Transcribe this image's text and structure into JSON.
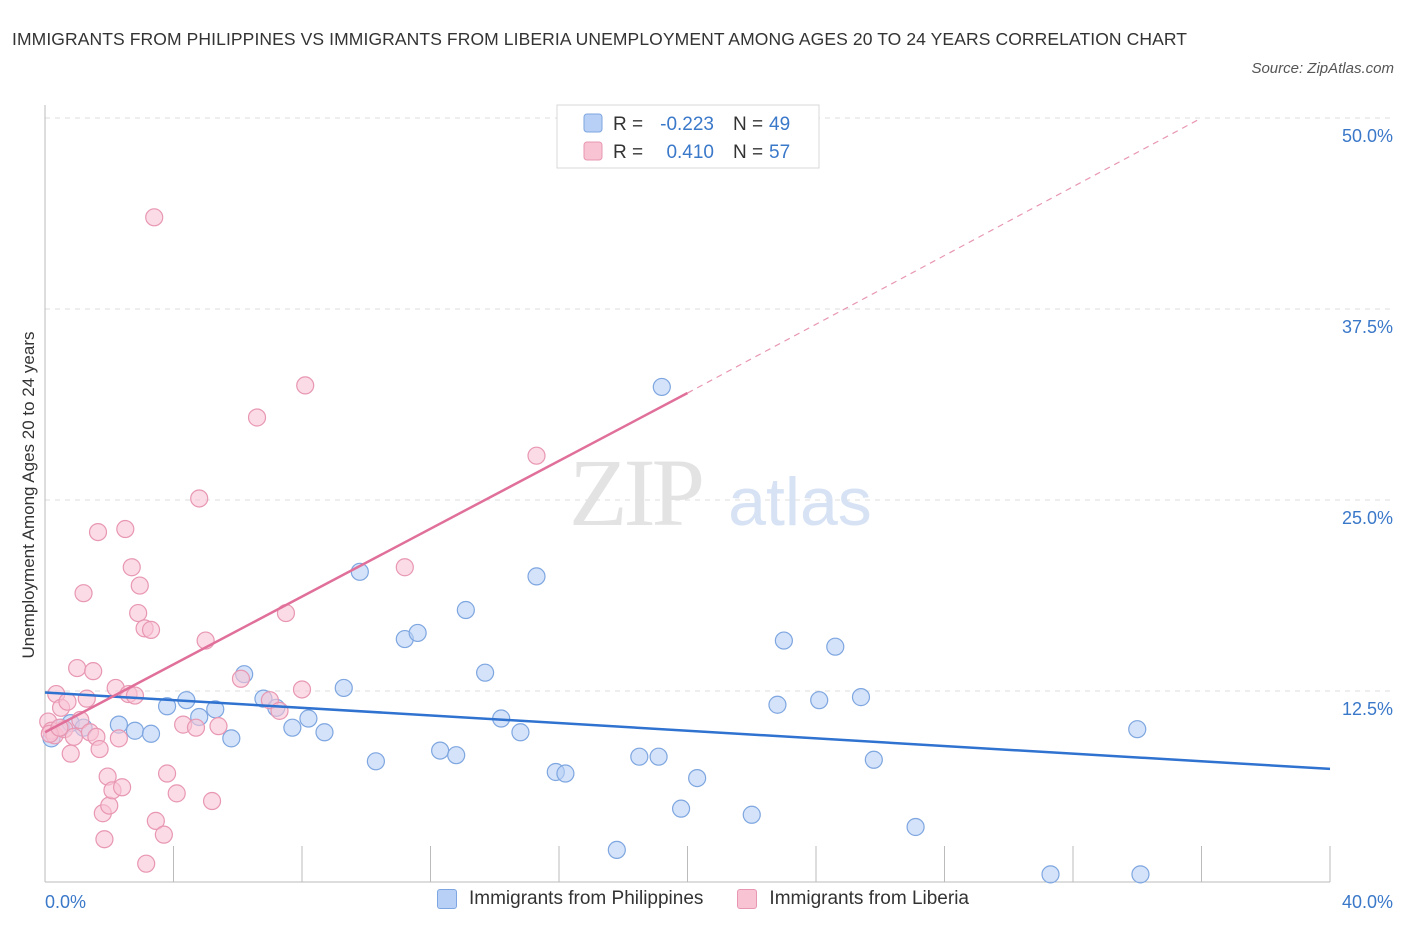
{
  "title": "IMMIGRANTS FROM PHILIPPINES VS IMMIGRANTS FROM LIBERIA UNEMPLOYMENT AMONG AGES 20 TO 24 YEARS CORRELATION CHART",
  "source": "Source: ZipAtlas.com",
  "watermark": {
    "zip": "ZIP",
    "atlas": "atlas"
  },
  "colors": {
    "philippines_fill": "#b8d0f5",
    "philippines_stroke": "#7ea6e0",
    "philippines_line": "#2f72d0",
    "liberia_fill": "#f8c3d3",
    "liberia_stroke": "#e897b2",
    "liberia_line": "#e0709a",
    "axis_label": "#3a78c9",
    "grid": "#dddddd"
  },
  "stats_legend": [
    {
      "r_label": "R =",
      "r_value": "-0.223",
      "n_label": "N =",
      "n_value": "49"
    },
    {
      "r_label": "R =",
      "r_value": "0.410",
      "n_label": "N =",
      "n_value": "57"
    }
  ],
  "chart_data": {
    "type": "scatter",
    "title": "IMMIGRANTS FROM PHILIPPINES VS IMMIGRANTS FROM LIBERIA UNEMPLOYMENT AMONG AGES 20 TO 24 YEARS CORRELATION CHART",
    "xlabel": "",
    "ylabel": "Unemployment Among Ages 20 to 24 years",
    "xlim": [
      0,
      40
    ],
    "ylim": [
      0,
      50
    ],
    "x_tick_labels": [
      "0.0%",
      "40.0%"
    ],
    "y_tick_labels": [
      "12.5%",
      "25.0%",
      "37.5%",
      "50.0%"
    ],
    "y_ticks": [
      12.5,
      25,
      37.5,
      50
    ],
    "grid": "horizontal dashed",
    "legend_position": "bottom",
    "series": [
      {
        "name": "Immigrants from Philippines",
        "trend": {
          "x": [
            0,
            40
          ],
          "y": [
            12.4,
            7.4
          ],
          "style": "solid"
        },
        "points": [
          {
            "x": 0.2,
            "y": 9.4
          },
          {
            "x": 0.5,
            "y": 10.1
          },
          {
            "x": 0.8,
            "y": 10.4
          },
          {
            "x": 1.2,
            "y": 10.1
          },
          {
            "x": 2.3,
            "y": 10.3
          },
          {
            "x": 2.8,
            "y": 9.9
          },
          {
            "x": 3.3,
            "y": 9.7
          },
          {
            "x": 3.8,
            "y": 11.5
          },
          {
            "x": 4.4,
            "y": 11.9
          },
          {
            "x": 4.8,
            "y": 10.8
          },
          {
            "x": 5.3,
            "y": 11.3
          },
          {
            "x": 5.8,
            "y": 9.4
          },
          {
            "x": 6.2,
            "y": 13.6
          },
          {
            "x": 6.8,
            "y": 12.0
          },
          {
            "x": 7.2,
            "y": 11.4
          },
          {
            "x": 7.7,
            "y": 10.1
          },
          {
            "x": 8.2,
            "y": 10.7
          },
          {
            "x": 8.7,
            "y": 9.8
          },
          {
            "x": 9.3,
            "y": 12.7
          },
          {
            "x": 9.8,
            "y": 20.3
          },
          {
            "x": 10.3,
            "y": 7.9
          },
          {
            "x": 11.2,
            "y": 15.9
          },
          {
            "x": 11.6,
            "y": 16.3
          },
          {
            "x": 12.3,
            "y": 8.6
          },
          {
            "x": 12.8,
            "y": 8.3
          },
          {
            "x": 13.1,
            "y": 17.8
          },
          {
            "x": 13.7,
            "y": 13.7
          },
          {
            "x": 14.2,
            "y": 10.7
          },
          {
            "x": 14.8,
            "y": 9.8
          },
          {
            "x": 15.3,
            "y": 20.0
          },
          {
            "x": 15.9,
            "y": 7.2
          },
          {
            "x": 16.2,
            "y": 7.1
          },
          {
            "x": 17.8,
            "y": 2.1
          },
          {
            "x": 18.5,
            "y": 8.2
          },
          {
            "x": 19.1,
            "y": 8.2
          },
          {
            "x": 19.2,
            "y": 32.4
          },
          {
            "x": 19.8,
            "y": 4.8
          },
          {
            "x": 20.3,
            "y": 6.8
          },
          {
            "x": 22.0,
            "y": 4.4
          },
          {
            "x": 22.8,
            "y": 11.6
          },
          {
            "x": 23.0,
            "y": 15.8
          },
          {
            "x": 24.1,
            "y": 11.9
          },
          {
            "x": 24.6,
            "y": 15.4
          },
          {
            "x": 25.4,
            "y": 12.1
          },
          {
            "x": 25.8,
            "y": 8.0
          },
          {
            "x": 27.1,
            "y": 3.6
          },
          {
            "x": 31.3,
            "y": 0.5
          },
          {
            "x": 34.0,
            "y": 10.0
          },
          {
            "x": 34.1,
            "y": 0.5
          }
        ]
      },
      {
        "name": "Immigrants from Liberia",
        "trend": {
          "x": [
            0,
            20
          ],
          "y": [
            9.8,
            32.0
          ],
          "style": "solid",
          "extension": {
            "x": [
              20,
              36
            ],
            "y": [
              32.0,
              50.0
            ],
            "style": "dashed"
          }
        },
        "points": [
          {
            "x": 0.1,
            "y": 10.5
          },
          {
            "x": 0.2,
            "y": 9.9
          },
          {
            "x": 0.3,
            "y": 9.6
          },
          {
            "x": 0.35,
            "y": 12.3
          },
          {
            "x": 0.5,
            "y": 11.4
          },
          {
            "x": 0.6,
            "y": 10.0
          },
          {
            "x": 0.7,
            "y": 11.8
          },
          {
            "x": 0.8,
            "y": 8.4
          },
          {
            "x": 0.9,
            "y": 9.5
          },
          {
            "x": 1.0,
            "y": 14.0
          },
          {
            "x": 1.1,
            "y": 10.6
          },
          {
            "x": 1.2,
            "y": 18.9
          },
          {
            "x": 1.3,
            "y": 12.0
          },
          {
            "x": 1.4,
            "y": 9.8
          },
          {
            "x": 1.5,
            "y": 13.8
          },
          {
            "x": 1.6,
            "y": 9.5
          },
          {
            "x": 1.65,
            "y": 22.9
          },
          {
            "x": 1.7,
            "y": 8.7
          },
          {
            "x": 1.8,
            "y": 4.5
          },
          {
            "x": 1.85,
            "y": 2.8
          },
          {
            "x": 1.95,
            "y": 6.9
          },
          {
            "x": 2.0,
            "y": 5.0
          },
          {
            "x": 2.1,
            "y": 6.0
          },
          {
            "x": 2.2,
            "y": 12.7
          },
          {
            "x": 2.3,
            "y": 9.4
          },
          {
            "x": 2.4,
            "y": 6.2
          },
          {
            "x": 2.5,
            "y": 23.1
          },
          {
            "x": 2.6,
            "y": 12.3
          },
          {
            "x": 2.7,
            "y": 20.6
          },
          {
            "x": 2.8,
            "y": 12.2
          },
          {
            "x": 2.9,
            "y": 17.6
          },
          {
            "x": 2.95,
            "y": 19.4
          },
          {
            "x": 3.1,
            "y": 16.6
          },
          {
            "x": 3.15,
            "y": 1.2
          },
          {
            "x": 3.3,
            "y": 16.5
          },
          {
            "x": 3.4,
            "y": 43.5
          },
          {
            "x": 3.45,
            "y": 4.0
          },
          {
            "x": 3.7,
            "y": 3.1
          },
          {
            "x": 3.8,
            "y": 7.1
          },
          {
            "x": 4.1,
            "y": 5.8
          },
          {
            "x": 4.3,
            "y": 10.3
          },
          {
            "x": 4.7,
            "y": 10.1
          },
          {
            "x": 4.8,
            "y": 25.1
          },
          {
            "x": 5.0,
            "y": 15.8
          },
          {
            "x": 5.2,
            "y": 5.3
          },
          {
            "x": 5.4,
            "y": 10.2
          },
          {
            "x": 6.1,
            "y": 13.3
          },
          {
            "x": 6.6,
            "y": 30.4
          },
          {
            "x": 7.0,
            "y": 11.9
          },
          {
            "x": 7.3,
            "y": 11.2
          },
          {
            "x": 7.5,
            "y": 17.6
          },
          {
            "x": 8.0,
            "y": 12.6
          },
          {
            "x": 8.1,
            "y": 32.5
          },
          {
            "x": 11.2,
            "y": 20.6
          },
          {
            "x": 15.3,
            "y": 27.9
          },
          {
            "x": 0.15,
            "y": 9.7
          },
          {
            "x": 0.45,
            "y": 10.1
          }
        ]
      }
    ]
  },
  "bottom_legend": [
    {
      "label": "Immigrants from Philippines"
    },
    {
      "label": "Immigrants from Liberia"
    }
  ]
}
